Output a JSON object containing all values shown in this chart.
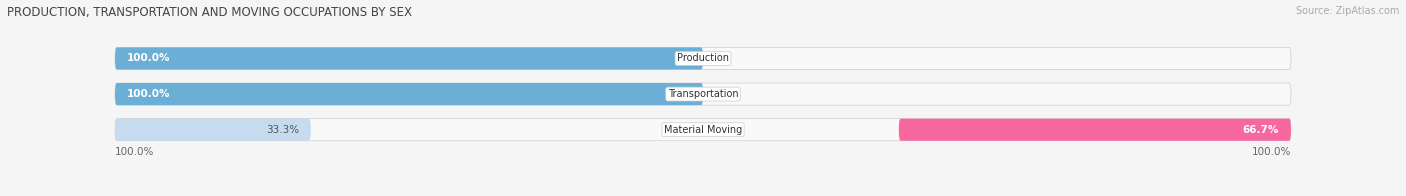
{
  "title": "PRODUCTION, TRANSPORTATION AND MOVING OCCUPATIONS BY SEX",
  "source": "Source: ZipAtlas.com",
  "categories": [
    "Production",
    "Transportation",
    "Material Moving"
  ],
  "male_pct": [
    100.0,
    100.0,
    33.3
  ],
  "female_pct": [
    0.0,
    0.0,
    66.7
  ],
  "male_color_strong": "#6baed6",
  "male_color_light": "#c6dbef",
  "female_color_strong": "#f768a1",
  "female_color_light": "#fcc5c0",
  "bg_color": "#f5f5f5",
  "bar_bg_color": "#e0e0e0",
  "bar_white_bg": "#f9f9f9",
  "title_fontsize": 8.5,
  "source_fontsize": 7,
  "label_fontsize": 7.5,
  "category_fontsize": 7,
  "legend_fontsize": 7.5
}
